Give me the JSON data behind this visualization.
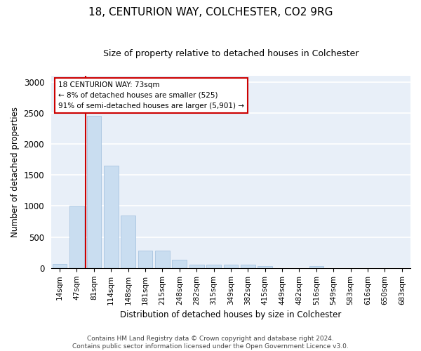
{
  "title": "18, CENTURION WAY, COLCHESTER, CO2 9RG",
  "subtitle": "Size of property relative to detached houses in Colchester",
  "xlabel": "Distribution of detached houses by size in Colchester",
  "ylabel": "Number of detached properties",
  "categories": [
    "14sqm",
    "47sqm",
    "81sqm",
    "114sqm",
    "148sqm",
    "181sqm",
    "215sqm",
    "248sqm",
    "282sqm",
    "315sqm",
    "349sqm",
    "382sqm",
    "415sqm",
    "449sqm",
    "482sqm",
    "516sqm",
    "549sqm",
    "583sqm",
    "616sqm",
    "650sqm",
    "683sqm"
  ],
  "values": [
    70,
    1000,
    2450,
    1650,
    850,
    280,
    280,
    130,
    60,
    55,
    55,
    50,
    35,
    0,
    0,
    30,
    0,
    0,
    0,
    0,
    0
  ],
  "bar_color": "#c9ddf0",
  "bar_edge_color": "#a8c4e0",
  "marker_line_color": "#cc0000",
  "annotation_line1": "18 CENTURION WAY: 73sqm",
  "annotation_line2": "← 8% of detached houses are smaller (525)",
  "annotation_line3": "91% of semi-detached houses are larger (5,901) →",
  "annotation_box_color": "#ffffff",
  "annotation_box_edge": "#cc0000",
  "ylim": [
    0,
    3100
  ],
  "yticks": [
    0,
    500,
    1000,
    1500,
    2000,
    2500,
    3000
  ],
  "bg_color": "#e8eff8",
  "grid_color": "#ffffff",
  "footer_line1": "Contains HM Land Registry data © Crown copyright and database right 2024.",
  "footer_line2": "Contains public sector information licensed under the Open Government Licence v3.0."
}
